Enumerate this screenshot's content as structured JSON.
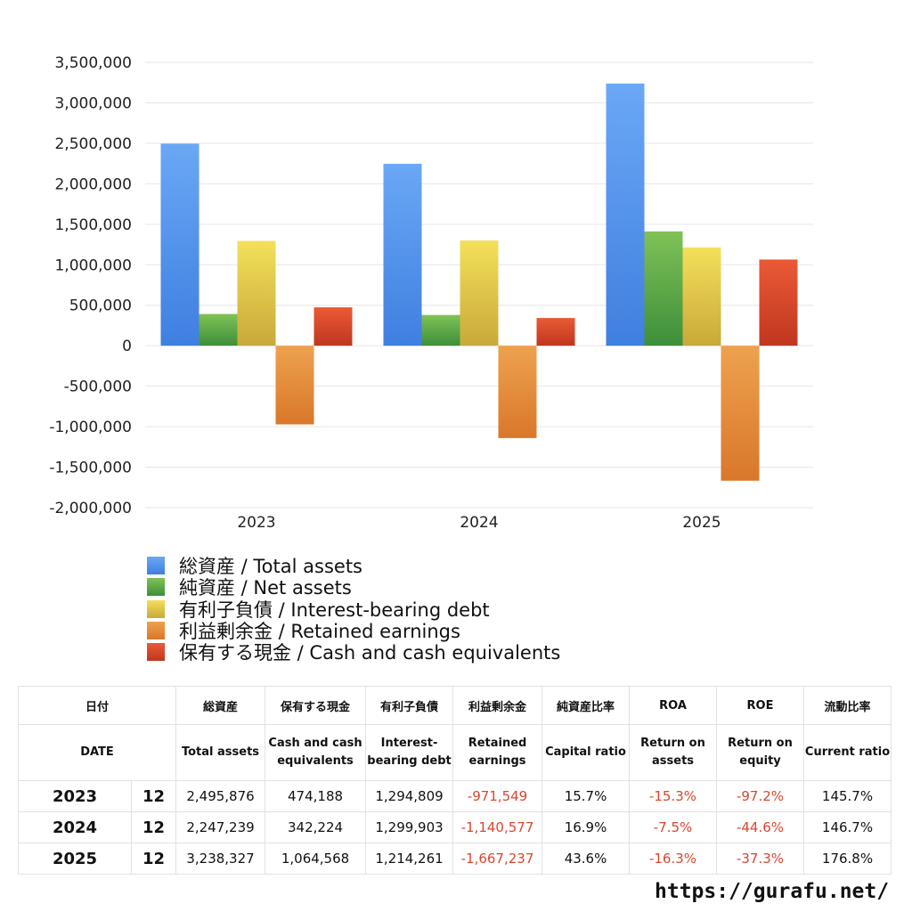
{
  "chart_data": {
    "type": "bar",
    "categories": [
      "2023",
      "2024",
      "2025"
    ],
    "ylim": [
      -2000000,
      3500000
    ],
    "yticks": [
      3500000,
      3000000,
      2500000,
      2000000,
      1500000,
      1000000,
      500000,
      0,
      -500000,
      -1000000,
      -1500000,
      -2000000
    ],
    "ytick_labels": [
      "3,500,000",
      "3,000,000",
      "2,500,000",
      "2,000,000",
      "1,500,000",
      "1,000,000",
      "500,000",
      "0",
      "-500,000",
      "-1,000,000",
      "-1,500,000",
      "-2,000,000"
    ],
    "series": [
      {
        "name": "総資産 / Total assets",
        "color": "#3f7fe0",
        "color2": "#6aa8f5",
        "values": [
          2495876,
          2247239,
          3238327
        ]
      },
      {
        "name": "純資産 / Net assets",
        "color": "#3d8f3a",
        "color2": "#7fc257",
        "values": [
          391853,
          379783,
          1411911
        ]
      },
      {
        "name": "有利子負債 / Interest-bearing debt",
        "color": "#c8a93a",
        "color2": "#f4e05a",
        "values": [
          1294809,
          1299903,
          1214261
        ]
      },
      {
        "name": "利益剰余金 / Retained earnings",
        "color": "#d9772a",
        "color2": "#eda24f",
        "values": [
          -971549,
          -1140577,
          -1667237
        ]
      },
      {
        "name": "保有する現金 /  Cash and cash equivalents",
        "color": "#c0361f",
        "color2": "#ea5a35",
        "values": [
          474188,
          342224,
          1064568
        ]
      }
    ],
    "grid": true,
    "legend": "bottom-left"
  },
  "table": {
    "header_jp": [
      "日付",
      "総資産",
      "保有する現金",
      "有利子負債",
      "利益剰余金",
      "純資産比率",
      "ROA",
      "ROE",
      "流動比率"
    ],
    "header_en": [
      "DATE",
      "Total assets",
      "Cash and cash equivalents",
      "Interest-bearing debt",
      "Retained earnings",
      "Capital ratio",
      "Return on assets",
      "Return on equity",
      "Current ratio"
    ],
    "rows": [
      [
        "2023",
        "12",
        "2,495,876",
        "474,188",
        "1,294,809",
        "-971,549",
        "15.7%",
        "-15.3%",
        "-97.2%",
        "145.7%"
      ],
      [
        "2024",
        "12",
        "2,247,239",
        "342,224",
        "1,299,903",
        "-1,140,577",
        "16.9%",
        "-7.5%",
        "-44.6%",
        "146.7%"
      ],
      [
        "2025",
        "12",
        "3,238,327",
        "1,064,568",
        "1,214,261",
        "-1,667,237",
        "43.6%",
        "-16.3%",
        "-37.3%",
        "176.8%"
      ]
    ]
  },
  "footer": {
    "url": "https://gurafu.net/"
  }
}
